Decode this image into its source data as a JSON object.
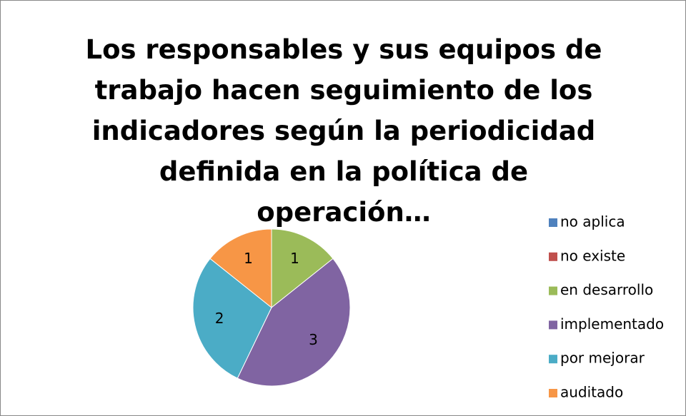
{
  "chart_data": {
    "type": "pie",
    "title": "Los responsables y sus equipos de trabajo hacen seguimiento de los indicadores según la periodicidad definida en la política de operación…",
    "categories": [
      "no aplica",
      "no existe",
      "en desarrollo",
      "implementado",
      "por mejorar",
      "auditado"
    ],
    "values": [
      0,
      0,
      1,
      3,
      2,
      1
    ],
    "colors": [
      "#4f81bd",
      "#c0504d",
      "#9bbb59",
      "#8064a2",
      "#4bacc6",
      "#f79646"
    ],
    "legend": "right"
  }
}
